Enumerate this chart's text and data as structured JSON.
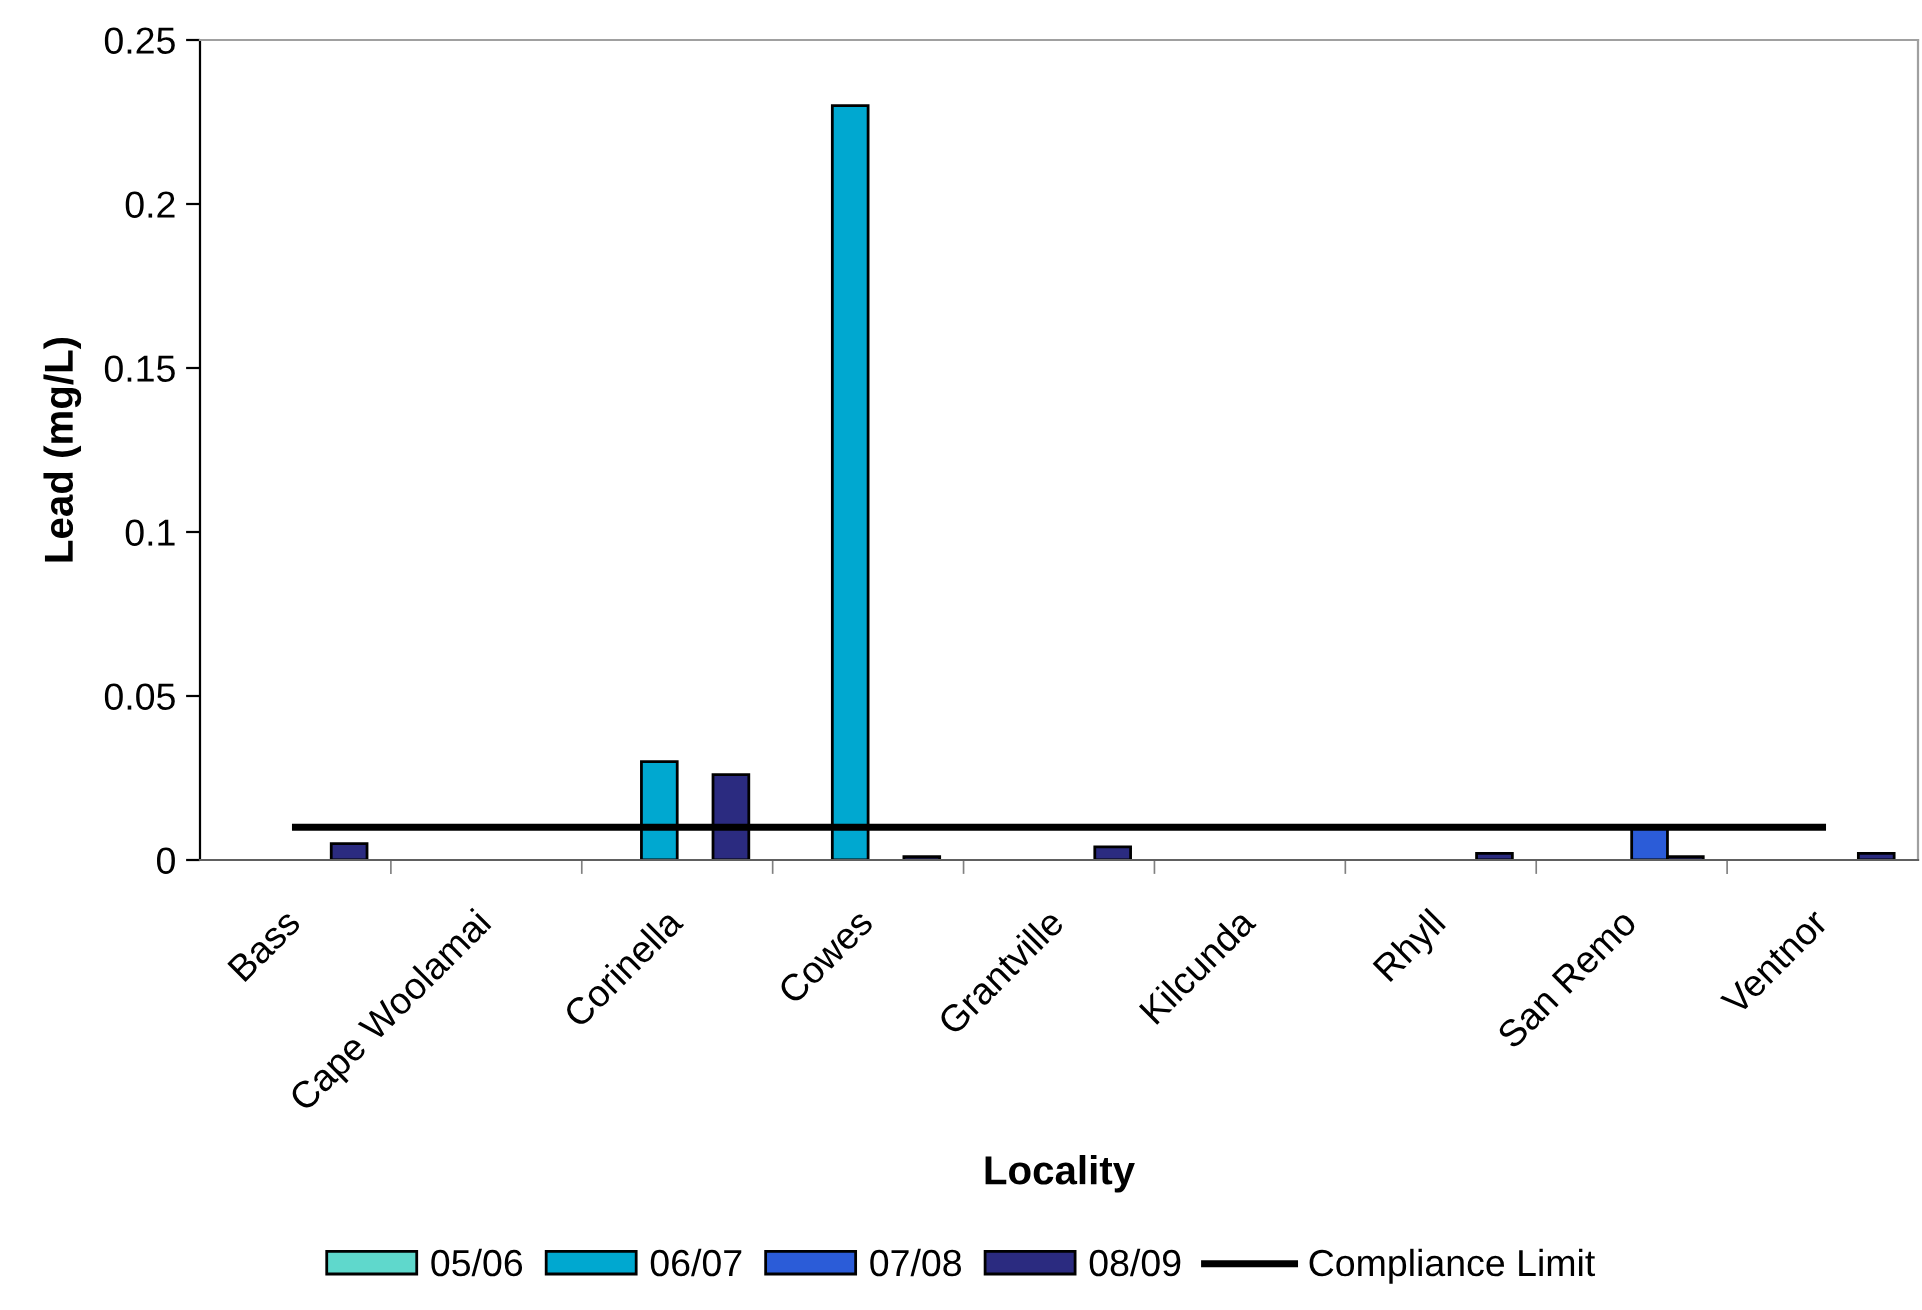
{
  "chart_data": {
    "type": "bar",
    "xlabel": "Locality",
    "ylabel": "Lead (mg/L)",
    "categories": [
      "Bass",
      "Cape Woolamai",
      "Corinella",
      "Cowes",
      "Grantville",
      "Kilcunda",
      "Rhyll",
      "San Remo",
      "Ventnor"
    ],
    "series": [
      {
        "name": "05/06",
        "color": "#5fd8cc",
        "values": [
          null,
          null,
          null,
          null,
          null,
          null,
          null,
          null,
          null
        ]
      },
      {
        "name": "06/07",
        "color": "#00a8d0",
        "values": [
          null,
          null,
          0.03,
          0.23,
          null,
          null,
          null,
          null,
          null
        ]
      },
      {
        "name": "07/08",
        "color": "#2b5cd8",
        "values": [
          null,
          null,
          null,
          null,
          null,
          null,
          null,
          0.01,
          null
        ]
      },
      {
        "name": "08/09",
        "color": "#2b2b80",
        "values": [
          0.005,
          null,
          0.026,
          0.001,
          0.004,
          null,
          0.002,
          0.001,
          0.002
        ]
      },
      {
        "name": "Compliance Limit",
        "type": "line",
        "color": "#000000",
        "values": [
          0.01,
          0.01,
          0.01,
          0.01,
          0.01,
          0.01,
          0.01,
          0.01,
          0.01
        ]
      }
    ],
    "ylim": [
      0,
      0.25
    ],
    "yticks": [
      0,
      0.05,
      0.1,
      0.15,
      0.2,
      0.25
    ],
    "grid": false,
    "legend": "bottom"
  }
}
